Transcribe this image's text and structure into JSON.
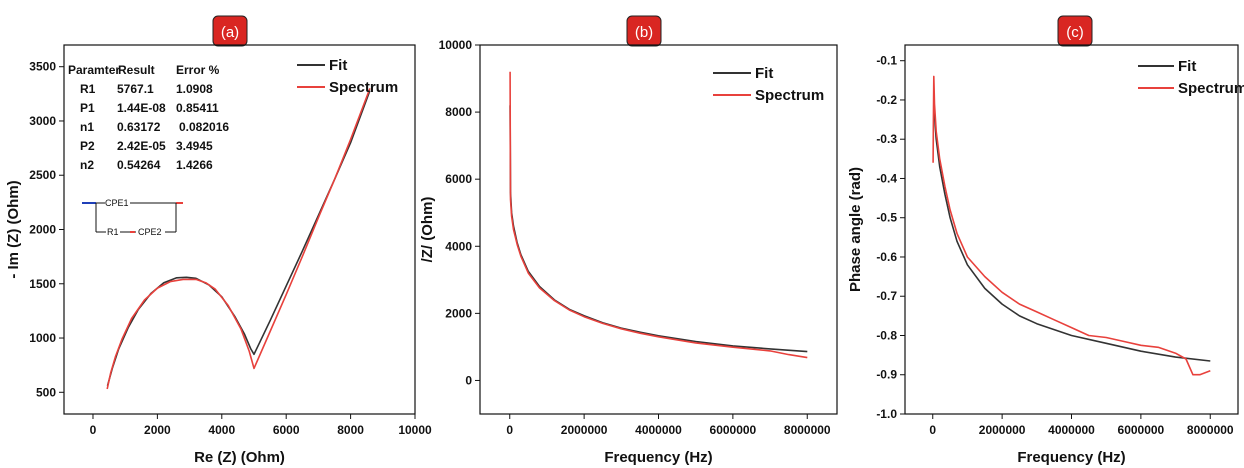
{
  "colors": {
    "fit": "#333333",
    "spectrum": "#e8413c",
    "tag_fill": "#d92622",
    "circuit_lead": "#1f3fb8",
    "circuit_junction": "#e8413c"
  },
  "table": {
    "headers": [
      "Paramter",
      "Result",
      "Error %"
    ],
    "rows": [
      [
        "R1",
        "5767.1",
        "1.0908"
      ],
      [
        "P1",
        "1.44E-08",
        "0.85411"
      ],
      [
        "n1",
        "0.63172",
        "0.082016"
      ],
      [
        "P2",
        "2.42E-05",
        "3.4945"
      ],
      [
        "n2",
        "0.54264",
        "1.4266"
      ]
    ]
  },
  "circuit": {
    "cpe1": "CPE1",
    "r1": "R1",
    "cpe2": "CPE2"
  },
  "chart_data": [
    {
      "panel_label": "(a)",
      "type": "line",
      "xlabel": "Re (Z) (Ohm)",
      "ylabel": "- Im (Z) (Ohm)",
      "xlim": [
        -900,
        10000
      ],
      "ylim": [
        300,
        3700
      ],
      "xticks": [
        0,
        2000,
        4000,
        6000,
        8000,
        10000
      ],
      "yticks": [
        500,
        1000,
        1500,
        2000,
        2500,
        3000,
        3500
      ],
      "xtick_labels": [
        "0",
        "2000",
        "4000",
        "6000",
        "8000",
        "10000"
      ],
      "ytick_labels": [
        "500",
        "1000",
        "1500",
        "2000",
        "2500",
        "3000",
        "3500"
      ],
      "legend": {
        "placement": "top-right",
        "entries": [
          "Fit",
          "Spectrum"
        ]
      },
      "grid": false,
      "series": [
        {
          "name": "Fit",
          "x": [
            450,
            600,
            800,
            1100,
            1400,
            1800,
            2200,
            2600,
            2900,
            3200,
            3600,
            4000,
            4400,
            4700,
            4900,
            5000,
            5500,
            6000,
            6500,
            7000,
            7500,
            8000,
            8600
          ],
          "y": [
            560,
            720,
            900,
            1100,
            1260,
            1410,
            1510,
            1555,
            1560,
            1550,
            1490,
            1380,
            1200,
            1040,
            900,
            850,
            1160,
            1480,
            1800,
            2130,
            2460,
            2800,
            3280
          ]
        },
        {
          "name": "Spectrum",
          "x": [
            440,
            550,
            700,
            900,
            1200,
            1600,
            2000,
            2400,
            2800,
            3200,
            3500,
            3800,
            4200,
            4600,
            4850,
            5000,
            5500,
            6000,
            6500,
            7000,
            7500,
            8000,
            8600
          ],
          "y": [
            530,
            680,
            830,
            990,
            1180,
            1350,
            1460,
            1520,
            1540,
            1540,
            1510,
            1450,
            1300,
            1080,
            880,
            720,
            1060,
            1400,
            1750,
            2110,
            2460,
            2830,
            3300
          ]
        }
      ]
    },
    {
      "panel_label": "(b)",
      "type": "line",
      "xlabel": "Frequency (Hz)",
      "ylabel": "/Z/ (Ohm)",
      "xlim": [
        -800000,
        8800000
      ],
      "ylim": [
        -1000,
        10000
      ],
      "xticks": [
        0,
        2000000,
        4000000,
        6000000,
        8000000
      ],
      "yticks": [
        0,
        2000,
        4000,
        6000,
        8000,
        10000
      ],
      "xtick_labels": [
        "0",
        "2000000",
        "4000000",
        "6000000",
        "8000000"
      ],
      "ytick_labels": [
        "0",
        "2000",
        "4000",
        "6000",
        "8000",
        "10000"
      ],
      "legend": {
        "placement": "top-right",
        "entries": [
          "Fit",
          "Spectrum"
        ]
      },
      "grid": false,
      "series": [
        {
          "name": "Fit",
          "x": [
            10000,
            20000,
            50000,
            100000,
            200000,
            300000,
            500000,
            800000,
            1200000,
            1600000,
            2000000,
            2500000,
            3000000,
            3500000,
            4000000,
            5000000,
            6000000,
            7000000,
            8000000
          ],
          "y": [
            8200,
            5600,
            5000,
            4600,
            4100,
            3750,
            3250,
            2800,
            2400,
            2120,
            1930,
            1720,
            1560,
            1440,
            1330,
            1160,
            1030,
            940,
            860
          ]
        },
        {
          "name": "Spectrum",
          "x": [
            10000,
            15000,
            20000,
            50000,
            100000,
            200000,
            300000,
            500000,
            800000,
            1200000,
            1600000,
            2000000,
            2500000,
            3000000,
            3500000,
            4000000,
            5000000,
            6000000,
            7000000,
            7500000,
            8000000
          ],
          "y": [
            9200,
            7000,
            5400,
            4900,
            4500,
            4050,
            3700,
            3200,
            2760,
            2380,
            2100,
            1900,
            1700,
            1540,
            1410,
            1300,
            1120,
            990,
            880,
            770,
            680
          ]
        }
      ]
    },
    {
      "panel_label": "(c)",
      "type": "line",
      "xlabel": "Frequency (Hz)",
      "ylabel": "Phase angle (rad)",
      "xlim": [
        -800000,
        8800000
      ],
      "ylim": [
        -1.0,
        -0.06
      ],
      "xticks": [
        0,
        2000000,
        4000000,
        6000000,
        8000000
      ],
      "yticks": [
        -1.0,
        -0.9,
        -0.8,
        -0.7,
        -0.6,
        -0.5,
        -0.4,
        -0.3,
        -0.2,
        -0.1
      ],
      "xtick_labels": [
        "0",
        "2000000",
        "4000000",
        "6000000",
        "8000000"
      ],
      "ytick_labels": [
        "-1.0",
        "-0.9",
        "-0.8",
        "-0.7",
        "-0.6",
        "-0.5",
        "-0.4",
        "-0.3",
        "-0.2",
        "-0.1"
      ],
      "legend": {
        "placement": "top-right",
        "entries": [
          "Fit",
          "Spectrum"
        ]
      },
      "grid": false,
      "series": [
        {
          "name": "Fit",
          "x": [
            30000,
            50000,
            100000,
            200000,
            350000,
            500000,
            700000,
            1000000,
            1500000,
            2000000,
            2500000,
            3000000,
            4000000,
            5000000,
            6000000,
            7000000,
            8000000
          ],
          "y": [
            -0.2,
            -0.24,
            -0.3,
            -0.37,
            -0.44,
            -0.5,
            -0.56,
            -0.62,
            -0.68,
            -0.72,
            -0.75,
            -0.77,
            -0.8,
            -0.82,
            -0.84,
            -0.855,
            -0.865
          ]
        },
        {
          "name": "Spectrum",
          "x": [
            10000,
            20000,
            30000,
            50000,
            100000,
            200000,
            350000,
            500000,
            700000,
            1000000,
            1500000,
            2000000,
            2500000,
            3000000,
            3500000,
            4000000,
            4500000,
            5000000,
            5500000,
            6000000,
            6500000,
            7000000,
            7300000,
            7500000,
            7700000,
            8000000
          ],
          "y": [
            -0.36,
            -0.25,
            -0.14,
            -0.21,
            -0.28,
            -0.35,
            -0.42,
            -0.48,
            -0.54,
            -0.6,
            -0.65,
            -0.69,
            -0.72,
            -0.74,
            -0.76,
            -0.78,
            -0.8,
            -0.805,
            -0.815,
            -0.825,
            -0.83,
            -0.845,
            -0.86,
            -0.9,
            -0.9,
            -0.89
          ]
        }
      ]
    }
  ]
}
